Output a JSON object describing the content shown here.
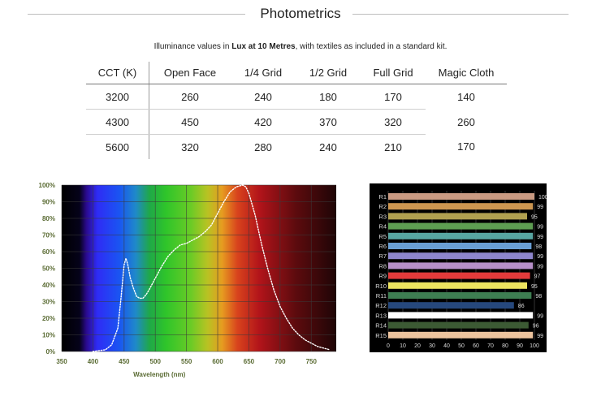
{
  "header": {
    "title": "Photometrics",
    "subtitle_prefix": "Illuminance values in ",
    "subtitle_bold": "Lux at 10 Metres",
    "subtitle_suffix": ", with textiles as included in a standard kit."
  },
  "table": {
    "headers": [
      "CCT (K)",
      "Open Face",
      "1/4 Grid",
      "1/2 Grid",
      "Full Grid",
      "Magic Cloth"
    ],
    "rows": [
      [
        "3200",
        "260",
        "240",
        "180",
        "170",
        "140"
      ],
      [
        "4300",
        "450",
        "420",
        "370",
        "320",
        "260"
      ],
      [
        "5600",
        "320",
        "280",
        "240",
        "210",
        "170"
      ]
    ]
  },
  "chart_data": [
    {
      "type": "line",
      "title": "",
      "xlabel": "Wavelength (nm)",
      "ylabel": "",
      "xlim": [
        350,
        790
      ],
      "ylim": [
        0,
        100
      ],
      "x_ticks": [
        "350",
        "400",
        "450",
        "500",
        "550",
        "600",
        "650",
        "700",
        "750"
      ],
      "y_ticks": [
        "0%",
        "10%",
        "20%",
        "30%",
        "40%",
        "50%",
        "60%",
        "70%",
        "80%",
        "90%",
        "100%"
      ],
      "grid": true,
      "series": [
        {
          "color": "#ffffff",
          "x": [
            400,
            420,
            430,
            440,
            445,
            450,
            453,
            456,
            460,
            465,
            470,
            475,
            480,
            485,
            490,
            500,
            510,
            520,
            530,
            540,
            550,
            560,
            570,
            580,
            590,
            600,
            610,
            620,
            630,
            640,
            645,
            650,
            660,
            670,
            680,
            690,
            700,
            710,
            720,
            730,
            740,
            750,
            760,
            770,
            780
          ],
          "y": [
            0,
            1,
            4,
            14,
            32,
            52,
            56,
            52,
            44,
            38,
            33,
            32,
            32,
            34,
            37,
            44,
            51,
            57,
            61,
            64,
            65,
            67,
            69,
            72,
            76,
            83,
            90,
            96,
            99,
            100,
            99,
            95,
            82,
            65,
            50,
            37,
            27,
            20,
            14,
            10,
            7,
            5,
            3,
            2,
            1
          ]
        }
      ]
    },
    {
      "type": "bar",
      "orientation": "horizontal",
      "title": "",
      "categories": [
        "R1",
        "R2",
        "R3",
        "R4",
        "R5",
        "R6",
        "R7",
        "R8",
        "R9",
        "R10",
        "R11",
        "R12",
        "R13",
        "R14",
        "R15"
      ],
      "values": [
        100,
        99,
        95,
        99,
        99,
        98,
        99,
        99,
        97,
        95,
        98,
        86,
        99,
        96,
        99
      ],
      "colors": [
        "#c99a82",
        "#cc9650",
        "#b0a050",
        "#5e9e52",
        "#58a6a2",
        "#6a9fd4",
        "#8e86cc",
        "#b790c9",
        "#e23b3b",
        "#ece460",
        "#3e7e52",
        "#26487c",
        "#ffffff",
        "#3c5a34",
        "#edc49e"
      ],
      "x_ticks": [
        "0",
        "10",
        "20",
        "30",
        "40",
        "50",
        "60",
        "70",
        "80",
        "90",
        "100"
      ],
      "xlim": [
        0,
        100
      ]
    }
  ]
}
